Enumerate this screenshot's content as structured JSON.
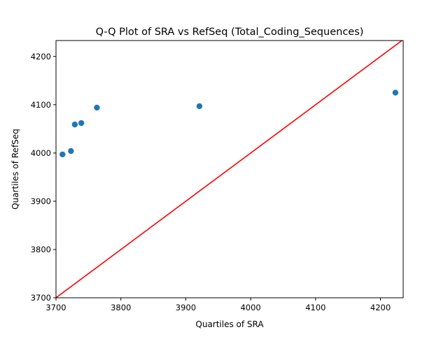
{
  "chart_data": {
    "type": "scatter",
    "title": "Q-Q Plot of SRA vs RefSeq (Total_Coding_Sequences)",
    "xlabel": "Quartiles of SRA",
    "ylabel": "Quartiles of RefSeq",
    "xlim": [
      3700,
      4235
    ],
    "ylim": [
      3700,
      4233
    ],
    "xticks": [
      3700,
      3800,
      3900,
      4000,
      4100,
      4200
    ],
    "yticks": [
      3700,
      3800,
      3900,
      4000,
      4100,
      4200
    ],
    "grid": false,
    "legend": "none",
    "series": [
      {
        "color": "#1f77b4",
        "points": [
          {
            "x": 3710,
            "y": 3997
          },
          {
            "x": 3723,
            "y": 4004
          },
          {
            "x": 3729,
            "y": 4059
          },
          {
            "x": 3739,
            "y": 4062
          },
          {
            "x": 3763,
            "y": 4094
          },
          {
            "x": 3921,
            "y": 4097
          },
          {
            "x": 4223,
            "y": 4125
          }
        ]
      }
    ],
    "reference_line": {
      "color": "#ff0000",
      "from": [
        3700,
        3700
      ],
      "to": [
        4235,
        4235
      ]
    }
  }
}
